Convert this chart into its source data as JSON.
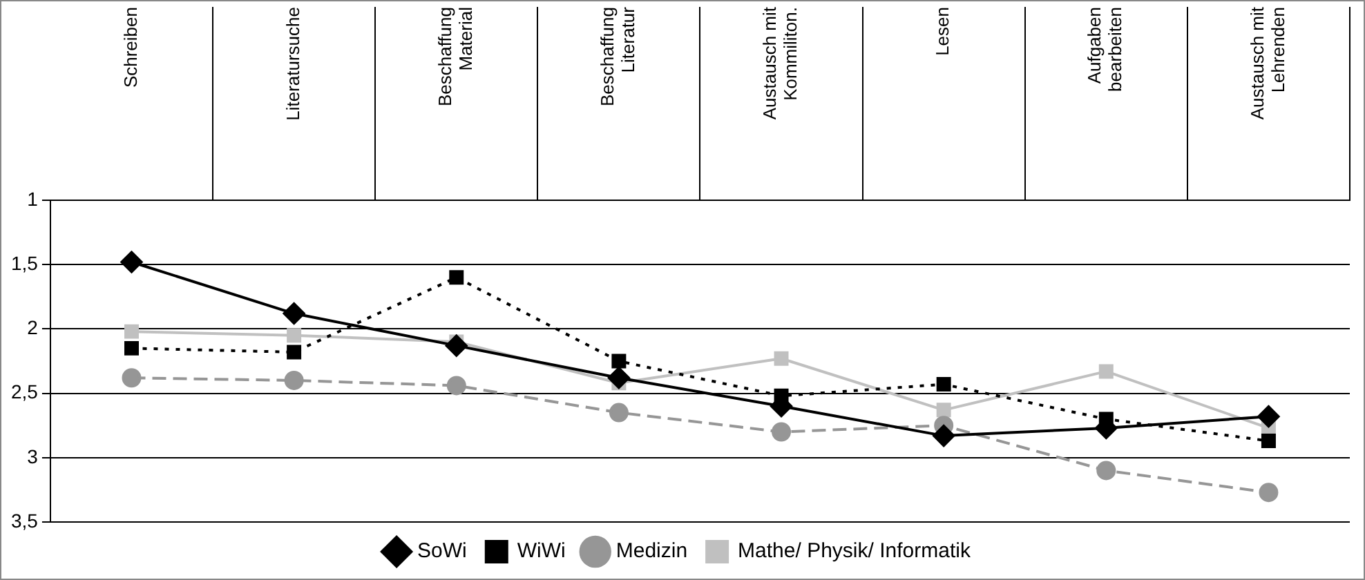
{
  "chart_data": {
    "type": "line",
    "categories": [
      "Schreiben",
      "Literatursuche",
      "Beschaffung Material",
      "Beschaffung Literatur",
      "Austausch mit Kommiliton.",
      "Lesen",
      "Aufgaben bearbeiten",
      "Austausch mit Lehrenden"
    ],
    "series": [
      {
        "name": "SoWi",
        "color": "#000000",
        "marker": "diamond",
        "line_style": "solid",
        "values": [
          1.48,
          1.88,
          2.13,
          2.38,
          2.6,
          2.83,
          2.77,
          2.68
        ]
      },
      {
        "name": "WiWi",
        "color": "#000000",
        "marker": "square",
        "line_style": "dotted",
        "values": [
          2.15,
          2.18,
          1.6,
          2.25,
          2.52,
          2.43,
          2.7,
          2.87
        ]
      },
      {
        "name": "Medizin",
        "color": "#969696",
        "marker": "circle",
        "line_style": "dashed",
        "values": [
          2.38,
          2.4,
          2.44,
          2.65,
          2.8,
          2.75,
          3.1,
          3.27
        ]
      },
      {
        "name": "Mathe/ Physik/ Informatik",
        "color": "#c0c0c0",
        "marker": "square",
        "line_style": "solid",
        "values": [
          2.02,
          2.05,
          2.1,
          2.42,
          2.23,
          2.63,
          2.33,
          2.77
        ]
      }
    ],
    "ylim": [
      3.5,
      1
    ],
    "yticks": [
      1,
      {
        "value": 1.5,
        "label": "1,5"
      },
      2,
      {
        "value": 2.5,
        "label": "2,5"
      },
      3,
      {
        "value": 3.5,
        "label": "3,5"
      }
    ],
    "grid": "y",
    "legend": "bottom"
  }
}
